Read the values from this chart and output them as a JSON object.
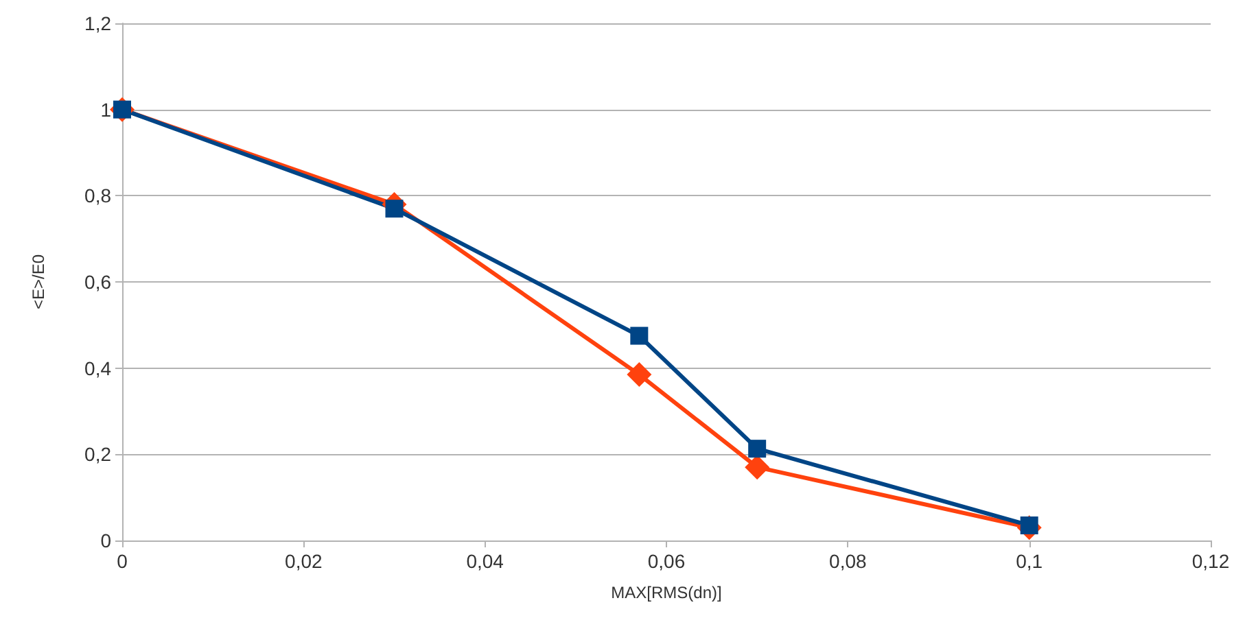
{
  "chart_data": {
    "type": "line",
    "xlabel": "MAX[RMS(dn)]",
    "ylabel": "<E>/E0",
    "xlim": [
      0,
      0.12
    ],
    "xticks": [
      0,
      {
        "value": 0.02,
        "label": "0,02"
      },
      {
        "value": 0.04,
        "label": "0,04"
      },
      {
        "value": 0.06,
        "label": "0,06"
      },
      {
        "value": 0.08,
        "label": "0,08"
      },
      {
        "value": 0.1,
        "label": "0,1"
      },
      {
        "value": 0.12,
        "label": "0,12"
      }
    ],
    "ylim": [
      0,
      1.2
    ],
    "yticks": [
      0,
      {
        "value": 0.2,
        "label": "0,2"
      },
      {
        "value": 0.4,
        "label": "0,4"
      },
      {
        "value": 0.6,
        "label": "0,6"
      },
      {
        "value": 0.8,
        "label": "0,8"
      },
      1,
      {
        "value": 1.2,
        "label": "1,2"
      }
    ],
    "x": [
      0,
      0.03,
      0.057,
      0.07,
      0.1
    ],
    "grid": "y",
    "line_style": "solid",
    "series": [
      {
        "color": "#ff420e",
        "marker": "diamond",
        "values": [
          1,
          0.78,
          0.385,
          0.17,
          0.03
        ]
      },
      {
        "color": "#004586",
        "marker": "square",
        "values": [
          1,
          0.77,
          0.475,
          0.213,
          0.035
        ]
      }
    ]
  }
}
